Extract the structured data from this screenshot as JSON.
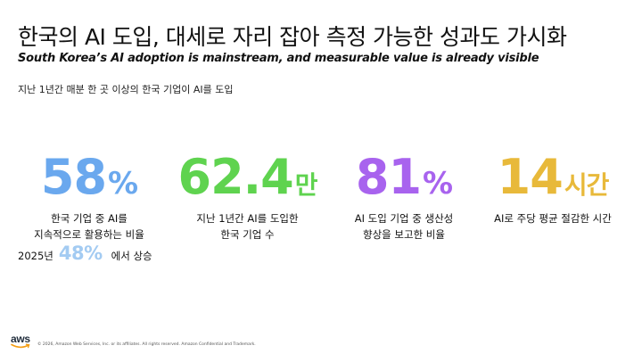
{
  "header": {
    "title": "한국의 AI 도입, 대세로 자리 잡아 측정 가능한 성과도 가시화",
    "subtitle": "South Korea’s AI adoption is mainstream, and measurable value is already visible",
    "caption": "지난 1년간 매분 한 곳 이상의 한국 기업이 AI를 도입"
  },
  "stats": [
    {
      "value": "58",
      "unit": "%",
      "color": "#6aa8ee",
      "desc_line1": "한국 기업 중 AI를",
      "desc_line2": "지속적으로 활용하는 비율"
    },
    {
      "value": "62.4",
      "unit": "만",
      "color": "#5fd34f",
      "desc_line1": "지난 1년간 AI를 도입한",
      "desc_line2": "한국 기업 수"
    },
    {
      "value": "81",
      "unit": "%",
      "color": "#a863ee",
      "desc_line1": "AI 도입 기업 중 생산성",
      "desc_line2": "향상을 보고한 비율"
    },
    {
      "value": "14",
      "unit": "시간",
      "color": "#e8b93a",
      "desc_line1": "AI로 주당 평균 절감한 시간",
      "desc_line2": ""
    }
  ],
  "rise": {
    "year": "2025년",
    "value": "48%",
    "suffix": "에서 상승",
    "color": "#a3cbf2"
  },
  "footer": {
    "logo_text": "aws",
    "legal": "© 2026, Amazon Web Services, Inc. or its affiliates. All rights reserved. Amazon Confidential and Trademark."
  }
}
